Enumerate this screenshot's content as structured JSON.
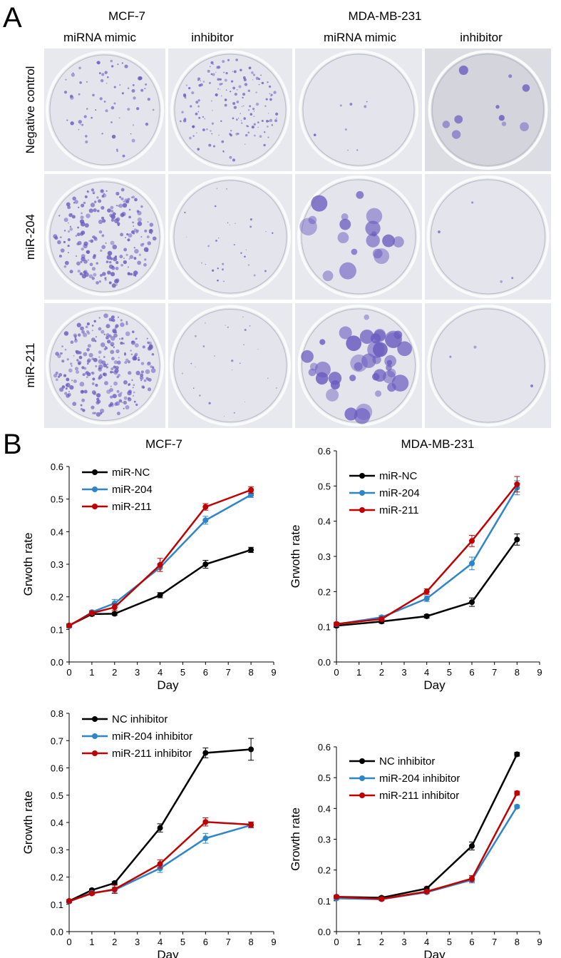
{
  "panel_a": {
    "label": "A",
    "cell_lines": [
      "MCF-7",
      "MDA-MB-231"
    ],
    "treatments": [
      "miRNA mimic",
      "inhibitor",
      "miRNA mimic",
      "inhibitor"
    ],
    "rows": [
      "Negative control",
      "miR-204",
      "miR-211"
    ]
  },
  "panel_b": {
    "label": "B"
  },
  "chart_data": [
    {
      "type": "line",
      "title": "MCF-7",
      "x_label": "Day",
      "y_label": "Grwoth rate",
      "legend": "upper left",
      "x": [
        0,
        1,
        2,
        4,
        6,
        8
      ],
      "xlim": [
        0,
        9
      ],
      "xticks": [
        0,
        1,
        2,
        3,
        4,
        5,
        6,
        7,
        8,
        9
      ],
      "ylim": [
        0,
        0.6
      ],
      "yticks": [
        {
          "value": 0,
          "label": "0.0"
        },
        0.1,
        0.2,
        0.3,
        0.4,
        0.5,
        0.6
      ],
      "series": [
        {
          "name": "miR-NC",
          "color": "#000000",
          "values": [
            0.112,
            0.147,
            0.148,
            0.205,
            0.3,
            0.344
          ],
          "errors": [
            0.005,
            0.005,
            0.005,
            0.008,
            0.012,
            0.008
          ]
        },
        {
          "name": "miR-204",
          "color": "#2e86c9",
          "values": [
            0.11,
            0.153,
            0.18,
            0.29,
            0.435,
            0.513
          ],
          "errors": [
            0.005,
            0.005,
            0.012,
            0.012,
            0.012,
            0.008
          ]
        },
        {
          "name": "miR-211",
          "color": "#c00000",
          "values": [
            0.112,
            0.15,
            0.168,
            0.298,
            0.476,
            0.528
          ],
          "errors": [
            0.005,
            0.005,
            0.01,
            0.02,
            0.01,
            0.01
          ]
        }
      ]
    },
    {
      "type": "line",
      "title": "MDA-MB-231",
      "x_label": "Day",
      "y_label": "Grwoth rate",
      "legend": "upper left",
      "x": [
        0,
        2,
        4,
        6,
        8
      ],
      "xlim": [
        0,
        9
      ],
      "xticks": [
        0,
        1,
        2,
        3,
        4,
        5,
        6,
        7,
        8,
        9
      ],
      "ylim": [
        0,
        0.6
      ],
      "yticks": [
        {
          "value": 0,
          "label": "0.0"
        },
        0.1,
        0.2,
        0.3,
        0.4,
        0.5,
        0.6
      ],
      "series": [
        {
          "name": "miR-NC",
          "color": "#000000",
          "values": [
            0.103,
            0.115,
            0.13,
            0.17,
            0.348
          ],
          "errors": [
            0.005,
            0.005,
            0.005,
            0.012,
            0.016
          ]
        },
        {
          "name": "miR-204",
          "color": "#2e86c9",
          "values": [
            0.107,
            0.127,
            0.18,
            0.28,
            0.495
          ],
          "errors": [
            0.005,
            0.005,
            0.008,
            0.018,
            0.02
          ]
        },
        {
          "name": "miR-211",
          "color": "#c00000",
          "values": [
            0.108,
            0.122,
            0.2,
            0.344,
            0.505
          ],
          "errors": [
            0.005,
            0.005,
            0.008,
            0.016,
            0.022
          ]
        }
      ]
    },
    {
      "type": "line",
      "x_label": "Day",
      "y_label": "Growth rate",
      "legend": "upper left",
      "x": [
        0,
        1,
        2,
        4,
        6,
        8
      ],
      "xlim": [
        0,
        9
      ],
      "xticks": [
        0,
        1,
        2,
        3,
        4,
        5,
        6,
        7,
        8,
        9
      ],
      "ylim": [
        0,
        0.8
      ],
      "yticks": [
        {
          "value": 0,
          "label": "0.0"
        },
        0.1,
        0.2,
        0.3,
        0.4,
        0.5,
        0.6,
        0.7,
        0.8
      ],
      "series": [
        {
          "name": "NC inhibitor",
          "color": "#000000",
          "values": [
            0.112,
            0.152,
            0.178,
            0.38,
            0.655,
            0.668
          ],
          "errors": [
            0.005,
            0.005,
            0.005,
            0.015,
            0.018,
            0.04
          ]
        },
        {
          "name": "miR-204 inhibitor",
          "color": "#2e86c9",
          "values": [
            0.11,
            0.142,
            0.153,
            0.232,
            0.342,
            0.39
          ],
          "errors": [
            0.005,
            0.005,
            0.01,
            0.015,
            0.018,
            0.01
          ]
        },
        {
          "name": "miR-211 inhibitor",
          "color": "#c00000",
          "values": [
            0.112,
            0.14,
            0.155,
            0.248,
            0.402,
            0.392
          ],
          "errors": [
            0.005,
            0.005,
            0.015,
            0.015,
            0.015,
            0.01
          ]
        }
      ]
    },
    {
      "type": "line",
      "x_label": "Day",
      "y_label": "Growth rate",
      "legend": "upper left",
      "x": [
        0,
        2,
        4,
        6,
        8
      ],
      "xlim": [
        0,
        9
      ],
      "xticks": [
        0,
        1,
        2,
        3,
        4,
        5,
        6,
        7,
        8,
        9
      ],
      "ylim": [
        0,
        0.6
      ],
      "yticks": [
        {
          "value": 0,
          "label": "0.0"
        },
        0.1,
        0.2,
        0.3,
        0.4,
        0.5,
        0.6
      ],
      "series": [
        {
          "name": "NC inhibitor",
          "color": "#000000",
          "values": [
            0.113,
            0.11,
            0.14,
            0.278,
            0.576
          ],
          "errors": [
            0.005,
            0.005,
            0.005,
            0.013,
            0.006
          ]
        },
        {
          "name": "miR-204 inhibitor",
          "color": "#2e86c9",
          "values": [
            0.108,
            0.105,
            0.128,
            0.168,
            0.406
          ],
          "errors": [
            0.005,
            0.005,
            0.005,
            0.01,
            0.005
          ]
        },
        {
          "name": "miR-211 inhibitor",
          "color": "#c00000",
          "values": [
            0.113,
            0.106,
            0.13,
            0.172,
            0.45
          ],
          "errors": [
            0.005,
            0.005,
            0.005,
            0.01,
            0.006
          ]
        }
      ]
    }
  ]
}
